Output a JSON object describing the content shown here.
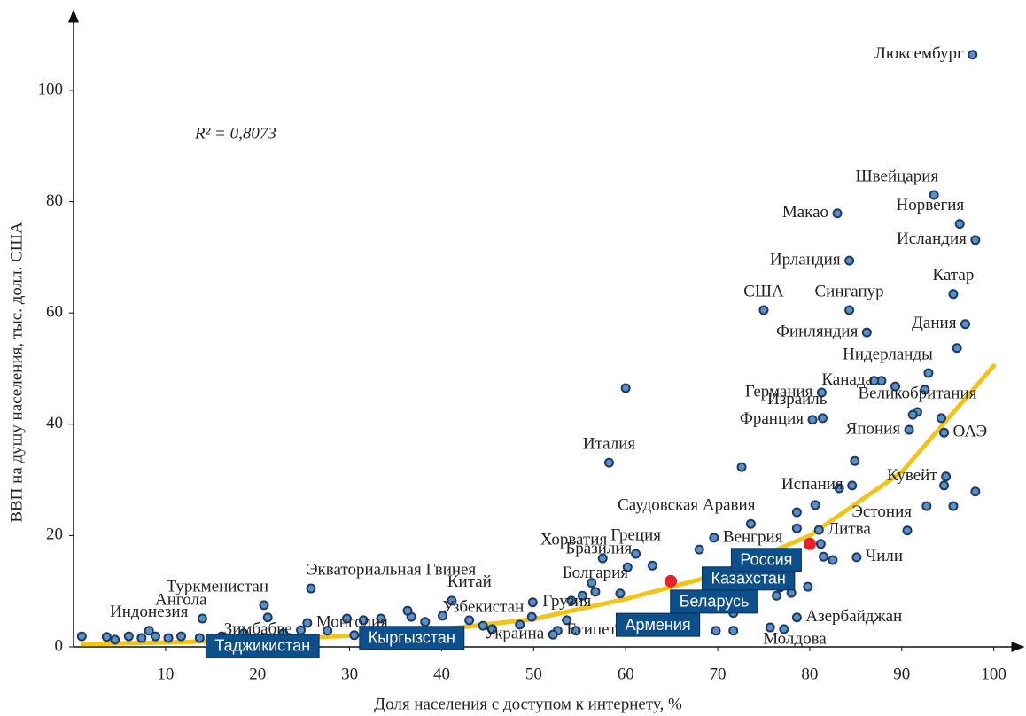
{
  "chart_data": {
    "type": "scatter",
    "ylabel": "ВВП на душу населения, тыс. долл. США",
    "xlabel": "Доля населения с доступом к интернету, %",
    "annotation": "R² = 0,8073",
    "xlim": [
      0,
      103.5
    ],
    "ylim": [
      0,
      114
    ],
    "xticks": [
      10,
      20,
      30,
      40,
      50,
      60,
      70,
      80,
      90,
      100
    ],
    "yticks": [
      0,
      20,
      40,
      60,
      80,
      100
    ],
    "trend": {
      "color": "#f2c31b",
      "x": [
        1,
        10,
        20,
        30,
        40,
        50,
        60,
        70,
        80,
        90,
        100
      ],
      "values": [
        0.5,
        0.8,
        1.25,
        2.0,
        3.15,
        5.0,
        8.6,
        13.0,
        20.0,
        31.4,
        50.5
      ]
    },
    "series": [
      {
        "color": "#5b8fc7",
        "labels": [
          "Люксембург",
          "Швейцария",
          "Макао",
          "Норвегия",
          "Исландия",
          "Ирландия",
          "Катар",
          "США",
          "Сингапур",
          "Дания",
          "Финляндия",
          "Нидерланды",
          "Германия",
          "Канада",
          "Израиль",
          "Франция",
          "Великобритания",
          "Япония",
          "ОАЭ",
          "Италия",
          "Испания",
          "Кувейт",
          "Саудовская Аравия",
          "Эстония",
          "Литва",
          "Венгрия",
          "Греция",
          "Хорватия",
          "Чили",
          "Бразилия",
          "Болгария",
          "Китай",
          "Экваториальная Гвинея",
          "Туркменистан",
          "Монголия",
          "Ангола",
          "Индонезия",
          "Зимбабве",
          "Узбекистан",
          "Грузия",
          "Египет",
          "Украина",
          "Молдова",
          "Азербайджан",
          null,
          null,
          null,
          null,
          null,
          null,
          null,
          null,
          null,
          null,
          null,
          null,
          null,
          null,
          null,
          null,
          null,
          null,
          null,
          null,
          null,
          null,
          null,
          null,
          null,
          null,
          null,
          null,
          null,
          null,
          null,
          null,
          null,
          null,
          null,
          null,
          null,
          null,
          null,
          null,
          null,
          null,
          null,
          null,
          null,
          null,
          null,
          null,
          null,
          null,
          null,
          null,
          null,
          null,
          null,
          null,
          null
        ],
        "x": [
          97.7,
          93.5,
          83.0,
          96.3,
          98.0,
          84.3,
          95.6,
          75.0,
          84.3,
          96.9,
          86.2,
          92.9,
          81.3,
          87.8,
          81.4,
          80.3,
          91.7,
          90.8,
          94.6,
          58.2,
          84.6,
          94.8,
          73.6,
          90.6,
          81.0,
          69.6,
          61.1,
          57.5,
          85.1,
          60.2,
          56.7,
          41.1,
          25.8,
          20.7,
          25.4,
          14.0,
          8.2,
          24.7,
          44.5,
          53.6,
          52.6,
          52.1,
          75.7,
          78.6,
          60.0,
          96.0,
          87.0,
          89.3,
          92.5,
          91.2,
          94.3,
          72.6,
          84.9,
          83.2,
          94.6,
          98.0,
          95.6,
          92.7,
          80.6,
          78.6,
          78.6,
          81.2,
          81.5,
          82.5,
          79.8,
          78.0,
          76.4,
          75.3,
          69.8,
          68.0,
          62.9,
          59.4,
          56.3,
          55.3,
          54.1,
          49.9,
          49.8,
          48.5,
          45.5,
          43.0,
          40.1,
          38.2,
          36.7,
          36.3,
          33.4,
          31.5,
          29.7,
          27.6,
          22.8,
          21.1,
          18.5,
          16.1,
          11.7,
          10.3,
          8.9,
          6.0,
          3.6,
          0.9,
          4.5,
          7.4,
          62.8,
          64.8,
          59.4,
          54.6,
          69.8,
          71.7,
          77.2,
          71.7
        ],
        "values": [
          106.4,
          81.2,
          77.9,
          76.0,
          73.1,
          69.4,
          63.4,
          60.5,
          60.5,
          58.0,
          56.5,
          49.2,
          45.7,
          47.8,
          41.1,
          40.8,
          42.2,
          39.0,
          38.5,
          33.1,
          29.0,
          30.6,
          22.1,
          20.9,
          21.0,
          19.6,
          16.7,
          15.9,
          16.1,
          14.3,
          9.9,
          8.3,
          10.5,
          7.5,
          4.3,
          5.1,
          2.9,
          3.0,
          3.8,
          4.8,
          2.9,
          2.2,
          3.5,
          5.3,
          46.5,
          53.7,
          47.8,
          46.8,
          46.2,
          41.7,
          41.1,
          32.3,
          33.4,
          28.5,
          29.0,
          27.9,
          25.3,
          25.3,
          25.5,
          24.2,
          21.3,
          18.5,
          16.2,
          15.6,
          10.8,
          9.7,
          9.2,
          12.4,
          13.1,
          17.5,
          14.6,
          9.6,
          11.5,
          9.2,
          8.3,
          8.0,
          5.4,
          4.0,
          3.2,
          4.8,
          5.6,
          4.5,
          5.4,
          6.5,
          5.1,
          4.8,
          5.1,
          2.9,
          2.4,
          5.3,
          2.4,
          1.9,
          1.9,
          1.6,
          1.9,
          1.9,
          1.8,
          1.9,
          1.3,
          1.6,
          4.8,
          4.8,
          3.8,
          2.9,
          2.9,
          2.9,
          3.2,
          6.1
        ]
      },
      {
        "color": "#5b8fc7",
        "box_color": "#0d4f8b",
        "labels": [
          "Казахстан",
          "Армения",
          "Таджикистан",
          "Кыргызстан"
        ],
        "x": [
          76.8,
          66.2,
          13.7,
          30.5
        ],
        "values": [
          10.7,
          3.8,
          1.6,
          2.1
        ]
      },
      {
        "color": "#e8202a",
        "box_color": "#0d4f8b",
        "labels": [
          "Россия",
          "Беларусь"
        ],
        "x": [
          80.0,
          64.9
        ],
        "values": [
          18.5,
          11.8
        ]
      }
    ]
  }
}
